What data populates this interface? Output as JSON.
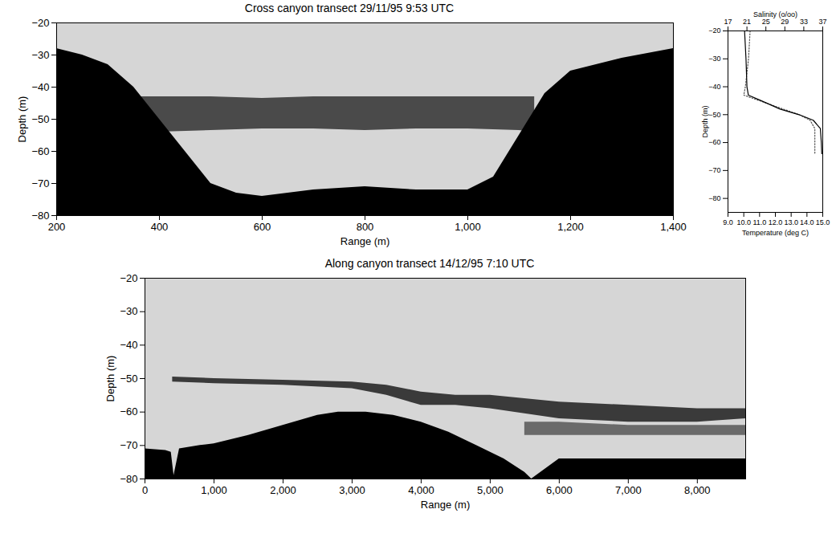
{
  "chart_data": [
    {
      "type": "echogram",
      "title": "Cross canyon transect 29/11/95 9:53 UTC",
      "xlabel": "Range (m)",
      "ylabel": "Depth (m)",
      "xlim": [
        200,
        1400
      ],
      "xticks": [
        200,
        400,
        600,
        800,
        1000,
        1200,
        1400
      ],
      "ylim": [
        -80,
        -20
      ],
      "yticks": [
        -80,
        -70,
        -60,
        -50,
        -40,
        -30,
        -20
      ],
      "grid": false,
      "layers": [
        {
          "color": "#4a4a4a",
          "x": [
            340,
            400,
            500,
            600,
            700,
            800,
            900,
            1000,
            1100,
            1130
          ],
          "top": [
            -43,
            -43,
            -43,
            -43.5,
            -43,
            -43,
            -43,
            -43,
            -43,
            -43
          ],
          "bottom": [
            -54,
            -54,
            -53.5,
            -53,
            -53,
            -53.5,
            -53,
            -53,
            -53.5,
            -54
          ]
        }
      ],
      "seabed": {
        "color": "#000000",
        "x": [
          200,
          250,
          300,
          350,
          400,
          450,
          500,
          550,
          600,
          700,
          800,
          900,
          1000,
          1050,
          1100,
          1150,
          1200,
          1300,
          1400
        ],
        "depth": [
          -28,
          -30,
          -33,
          -40,
          -50,
          -60,
          -70,
          -73,
          -74,
          -72,
          -71,
          -72,
          -72,
          -68,
          -55,
          -42,
          -35,
          -31,
          -28
        ]
      }
    },
    {
      "type": "line",
      "xlabel": "Temperature (deg C)",
      "x2label": "Salinity (o/oo)",
      "ylabel": "Depth (m)",
      "xlim": [
        9,
        15
      ],
      "xticks": [
        9,
        10,
        11,
        12,
        13,
        14,
        15
      ],
      "x2lim": [
        17,
        37
      ],
      "x2ticks": [
        17,
        21,
        25,
        29,
        33,
        37
      ],
      "ylim": [
        -85,
        -20
      ],
      "yticks": [
        -80,
        -70,
        -60,
        -50,
        -40,
        -30,
        -20
      ],
      "grid": false,
      "series": [
        {
          "axis": "x2",
          "color": "#000000",
          "line_style": "solid",
          "x": [
            20.5,
            20.8,
            21,
            21.3,
            24,
            28,
            32,
            35,
            36.5,
            36.7,
            36.8
          ],
          "y": [
            -20,
            -30,
            -40,
            -43,
            -45,
            -48,
            -50,
            -52,
            -55,
            -60,
            -64
          ]
        },
        {
          "color": "#555555",
          "line_style": "dotted",
          "x": [
            10.4,
            10.3,
            10.1,
            10,
            10.5,
            12,
            13.5,
            14.2,
            14.5,
            14.5,
            14.5
          ],
          "y": [
            -20,
            -30,
            -40,
            -43,
            -44,
            -47,
            -50,
            -52,
            -55,
            -60,
            -64
          ]
        }
      ]
    },
    {
      "type": "echogram",
      "title": "Along canyon transect 14/12/95 7:10 UTC",
      "xlabel": "Range (m)",
      "ylabel": "Depth (m)",
      "xlim": [
        0,
        8700
      ],
      "xticks": [
        0,
        1000,
        2000,
        3000,
        4000,
        5000,
        6000,
        7000,
        8000
      ],
      "ylim": [
        -80,
        -20
      ],
      "yticks": [
        -80,
        -70,
        -60,
        -50,
        -40,
        -30,
        -20
      ],
      "grid": false,
      "layers": [
        {
          "color": "#3a3a3a",
          "x": [
            400,
            1000,
            2000,
            3000,
            3500,
            4000,
            4500,
            5000,
            6000,
            7000,
            8000,
            8700
          ],
          "top": [
            -49.5,
            -50,
            -50.5,
            -51,
            -52,
            -54,
            -55,
            -55,
            -57,
            -58,
            -59,
            -59
          ],
          "bottom": [
            -51,
            -51.5,
            -52,
            -53,
            -55,
            -58,
            -58,
            -59,
            -62,
            -63,
            -63,
            -62
          ]
        },
        {
          "color": "#6a6a6a",
          "x": [
            5500,
            6000,
            7000,
            8000,
            8700
          ],
          "top": [
            -63,
            -63,
            -64,
            -64,
            -64
          ],
          "bottom": [
            -67,
            -67,
            -67,
            -67,
            -67
          ]
        }
      ],
      "seabed": {
        "color": "#000000",
        "x": [
          0,
          300,
          380,
          420,
          500,
          800,
          1000,
          1500,
          2000,
          2500,
          2800,
          3200,
          3600,
          4000,
          4400,
          4800,
          5200,
          5500,
          5600,
          6000,
          7000,
          8000,
          8700
        ],
        "depth": [
          -71,
          -71.5,
          -72,
          -79,
          -71,
          -70,
          -69.5,
          -67,
          -64,
          -61,
          -60,
          -60,
          -61,
          -63,
          -66,
          -70,
          -74,
          -78,
          -80,
          -74,
          -74,
          -74,
          -74
        ]
      }
    }
  ]
}
